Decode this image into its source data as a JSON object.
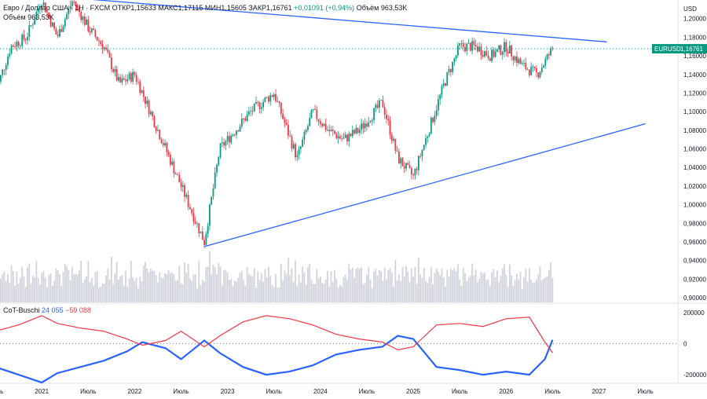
{
  "header": {
    "symbol_line": "Евро / Доллар США · 1Н · FXCM",
    "ohlc": "ОТКР1,15633 МАКС1,17115 МИН1,15605 ЗАКР1,16761",
    "change": "+0,01091 (+0,94%)",
    "volume_label": "Объём",
    "volume_value": "963,53K",
    "volume_line_label": "Объём",
    "volume_line_value": "963,53K"
  },
  "indicator": {
    "name": "CoT-Buschi",
    "value1": "24 055",
    "value2": "−59 088"
  },
  "colors": {
    "up": "#089981",
    "down": "#f23645",
    "trend": "#2962ff",
    "cot_blue": "#2962ff",
    "cot_red": "#f23645",
    "badge_bg": "#089981"
  },
  "chart_data": [
    {
      "type": "candlestick",
      "title": "Евро / Доллар США · 1Н · FXCM",
      "currency": "USD",
      "symbol": "EURUSD",
      "last_price": 1.16761,
      "last_price_label": "1,16761",
      "ylim": [
        0.895,
        1.22
      ],
      "y_ticks": [
        "1,20000",
        "1,18000",
        "1,16000",
        "1,14000",
        "1,12000",
        "1,10000",
        "1,08000",
        "1,06000",
        "1,04000",
        "1,02000",
        "1,00000",
        "0,98000",
        "0,96000",
        "0,94000",
        "0,92000",
        "0,90000"
      ],
      "y_tick_values": [
        1.2,
        1.18,
        1.16,
        1.14,
        1.12,
        1.1,
        1.08,
        1.06,
        1.04,
        1.02,
        1.0,
        0.98,
        0.96,
        0.94,
        0.92,
        0.9
      ],
      "x_ticks": [
        "Июль",
        "2021",
        "Июль",
        "2022",
        "Июль",
        "2023",
        "Июль",
        "2024",
        "Июль",
        "2025",
        "Июль",
        "2026",
        "Июль",
        "2027",
        "Июль"
      ],
      "close_path": [
        [
          "2020-07",
          1.12
        ],
        [
          "2020-09",
          1.17
        ],
        [
          "2020-11",
          1.18
        ],
        [
          "2021-01",
          1.22
        ],
        [
          "2021-03",
          1.18
        ],
        [
          "2021-05",
          1.22
        ],
        [
          "2021-07",
          1.19
        ],
        [
          "2021-09",
          1.17
        ],
        [
          "2021-11",
          1.13
        ],
        [
          "2022-01",
          1.14
        ],
        [
          "2022-03",
          1.1
        ],
        [
          "2022-05",
          1.06
        ],
        [
          "2022-07",
          1.02
        ],
        [
          "2022-09",
          0.98
        ],
        [
          "2022-10",
          0.96
        ],
        [
          "2022-12",
          1.06
        ],
        [
          "2023-02",
          1.08
        ],
        [
          "2023-04",
          1.1
        ],
        [
          "2023-07",
          1.12
        ],
        [
          "2023-10",
          1.05
        ],
        [
          "2023-12",
          1.1
        ],
        [
          "2024-02",
          1.08
        ],
        [
          "2024-04",
          1.07
        ],
        [
          "2024-06",
          1.08
        ],
        [
          "2024-09",
          1.11
        ],
        [
          "2024-11",
          1.05
        ],
        [
          "2025-01",
          1.03
        ],
        [
          "2025-03",
          1.08
        ],
        [
          "2025-05",
          1.13
        ],
        [
          "2025-07",
          1.17
        ],
        [
          "2025-09",
          1.17
        ],
        [
          "2025-11",
          1.16
        ],
        [
          "2026-01",
          1.17
        ],
        [
          "2026-03",
          1.15
        ],
        [
          "2026-05",
          1.14
        ],
        [
          "2026-07",
          1.16761
        ]
      ],
      "trendlines": [
        {
          "name": "upper",
          "points": [
            [
              "2021-01",
              1.225
            ],
            [
              "2027-02",
              1.175
            ]
          ]
        },
        {
          "name": "lower",
          "points": [
            [
              "2022-10",
              0.955
            ],
            [
              "2027-07",
              1.087
            ]
          ]
        }
      ],
      "volume": {
        "label": "Объём",
        "last": "963,53K"
      }
    },
    {
      "type": "line",
      "title": "CoT-Buschi",
      "ylim": [
        -250000,
        250000
      ],
      "y_ticks": [
        "200000",
        "0",
        "-200000"
      ],
      "y_tick_values": [
        200000,
        0,
        -200000
      ],
      "series": [
        {
          "name": "CoT-Buschi net (blue)",
          "color": "#2962ff",
          "values": [
            [
              "2020-07",
              -150000
            ],
            [
              "2020-10",
              -200000
            ],
            [
              "2021-01",
              -250000
            ],
            [
              "2021-03",
              -190000
            ],
            [
              "2021-06",
              -150000
            ],
            [
              "2021-09",
              -110000
            ],
            [
              "2021-12",
              -50000
            ],
            [
              "2022-02",
              10000
            ],
            [
              "2022-05",
              -30000
            ],
            [
              "2022-07",
              -100000
            ],
            [
              "2022-10",
              20000
            ],
            [
              "2022-12",
              -60000
            ],
            [
              "2023-03",
              -150000
            ],
            [
              "2023-06",
              -200000
            ],
            [
              "2023-09",
              -180000
            ],
            [
              "2023-12",
              -140000
            ],
            [
              "2024-03",
              -70000
            ],
            [
              "2024-06",
              -40000
            ],
            [
              "2024-09",
              -20000
            ],
            [
              "2024-11",
              50000
            ],
            [
              "2025-01",
              30000
            ],
            [
              "2025-04",
              -150000
            ],
            [
              "2025-07",
              -170000
            ],
            [
              "2025-10",
              -200000
            ],
            [
              "2026-01",
              -180000
            ],
            [
              "2026-04",
              -200000
            ],
            [
              "2026-06",
              -100000
            ],
            [
              "2026-07",
              24055
            ]
          ]
        },
        {
          "name": "CoT-Buschi net (red)",
          "color": "#f23645",
          "values": [
            [
              "2020-07",
              80000
            ],
            [
              "2020-10",
              120000
            ],
            [
              "2021-01",
              180000
            ],
            [
              "2021-03",
              130000
            ],
            [
              "2021-06",
              100000
            ],
            [
              "2021-09",
              80000
            ],
            [
              "2021-12",
              30000
            ],
            [
              "2022-02",
              -10000
            ],
            [
              "2022-05",
              20000
            ],
            [
              "2022-07",
              80000
            ],
            [
              "2022-10",
              -20000
            ],
            [
              "2022-12",
              50000
            ],
            [
              "2023-03",
              140000
            ],
            [
              "2023-06",
              180000
            ],
            [
              "2023-09",
              160000
            ],
            [
              "2023-12",
              120000
            ],
            [
              "2024-03",
              60000
            ],
            [
              "2024-06",
              30000
            ],
            [
              "2024-09",
              10000
            ],
            [
              "2024-11",
              -40000
            ],
            [
              "2025-01",
              -20000
            ],
            [
              "2025-04",
              120000
            ],
            [
              "2025-07",
              130000
            ],
            [
              "2025-10",
              110000
            ],
            [
              "2026-01",
              160000
            ],
            [
              "2026-04",
              170000
            ],
            [
              "2026-06",
              10000
            ],
            [
              "2026-07",
              -59088
            ]
          ]
        }
      ]
    }
  ]
}
